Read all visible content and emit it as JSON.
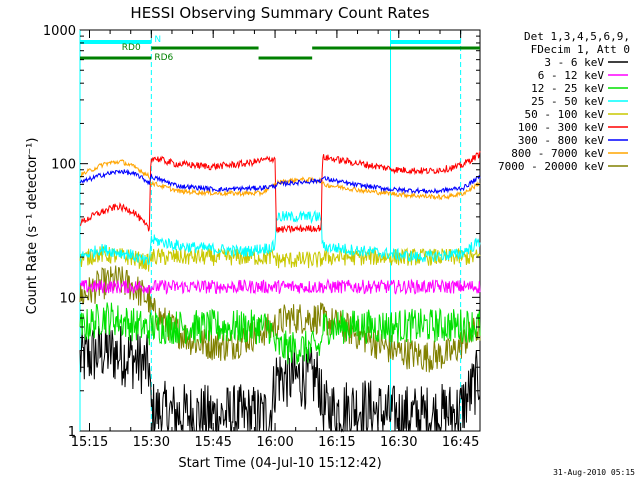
{
  "chart_data": {
    "type": "line",
    "title": "HESSI Observing Summary Count Rates",
    "xlabel": "Start Time (04-Jul-10 15:12:42)",
    "ylabel": "Count Rate (s⁻¹ detector⁻¹)",
    "yscale": "log",
    "ylim": [
      1,
      1000
    ],
    "xlim_minutes": [
      0,
      97
    ],
    "x_unit": "minutes after 15:12:42",
    "x_ticks": [
      {
        "label": "15:15",
        "minute": 2.3
      },
      {
        "label": "15:30",
        "minute": 17.3
      },
      {
        "label": "15:45",
        "minute": 32.3
      },
      {
        "label": "16:00",
        "minute": 47.3
      },
      {
        "label": "16:15",
        "minute": 62.3
      },
      {
        "label": "16:30",
        "minute": 77.3
      },
      {
        "label": "16:45",
        "minute": 92.3
      }
    ],
    "y_ticks": [
      {
        "label": "1",
        "value": 1
      },
      {
        "label": "10",
        "value": 10
      },
      {
        "label": "100",
        "value": 100
      },
      {
        "label": "1000",
        "value": 1000
      }
    ],
    "legend": {
      "placement": "top-right",
      "header": [
        "Det 1,3,4,5,6,9,",
        "FDecim 1, Att 0"
      ]
    },
    "series": [
      {
        "name": "3 - 6 keV",
        "color": "#000000"
      },
      {
        "name": "6 - 12 keV",
        "color": "#ff00ff"
      },
      {
        "name": "12 - 25 keV",
        "color": "#00e000"
      },
      {
        "name": "25 - 50 keV",
        "color": "#00ffff"
      },
      {
        "name": "50 - 100 keV",
        "color": "#c8c800"
      },
      {
        "name": "100 - 300 keV",
        "color": "#ff0000"
      },
      {
        "name": "300 - 800 keV",
        "color": "#0000ff"
      },
      {
        "name": "800 - 7000 keV",
        "color": "#ffa500"
      },
      {
        "name": "7000 - 20000 keV",
        "color": "#808000"
      }
    ],
    "profiles": [
      {
        "series": "3 - 6 keV",
        "points": [
          [
            0,
            3.4
          ],
          [
            6,
            4.0
          ],
          [
            12,
            3.6
          ],
          [
            16.8,
            3.0
          ],
          [
            17.2,
            1.4
          ],
          [
            30,
            1.3
          ],
          [
            46,
            1.3
          ],
          [
            47.6,
            2.6
          ],
          [
            50,
            2.5
          ],
          [
            58,
            2.5
          ],
          [
            58.8,
            1.4
          ],
          [
            68,
            1.5
          ],
          [
            76,
            1.3
          ],
          [
            86,
            1.3
          ],
          [
            92,
            1.4
          ],
          [
            97,
            2.6
          ]
        ]
      },
      {
        "series": "6 - 12 keV",
        "points": [
          [
            0,
            12
          ],
          [
            97,
            12
          ]
        ]
      },
      {
        "series": "12 - 25 keV",
        "points": [
          [
            0,
            5.8
          ],
          [
            6,
            7.2
          ],
          [
            12,
            6.4
          ],
          [
            16.8,
            5.8
          ],
          [
            17.2,
            6.0
          ],
          [
            46,
            6.0
          ],
          [
            47.6,
            4.2
          ],
          [
            58.5,
            4.2
          ],
          [
            58.8,
            6.0
          ],
          [
            97,
            6.2
          ]
        ]
      },
      {
        "series": "25 - 50 keV",
        "points": [
          [
            0,
            20
          ],
          [
            5,
            23
          ],
          [
            12,
            21
          ],
          [
            16.8,
            18
          ],
          [
            17.2,
            27
          ],
          [
            25,
            24
          ],
          [
            40,
            22
          ],
          [
            47.3,
            24
          ],
          [
            47.6,
            40
          ],
          [
            58.5,
            40
          ],
          [
            58.8,
            24
          ],
          [
            70,
            22
          ],
          [
            82,
            20
          ],
          [
            92,
            21
          ],
          [
            97,
            26
          ]
        ]
      },
      {
        "series": "50 - 100 keV",
        "points": [
          [
            0,
            19
          ],
          [
            4,
            21
          ],
          [
            12,
            20
          ],
          [
            16.8,
            18
          ],
          [
            17.2,
            20
          ],
          [
            47.3,
            20
          ],
          [
            47.6,
            19
          ],
          [
            58.5,
            19
          ],
          [
            58.8,
            20
          ],
          [
            97,
            20
          ]
        ]
      },
      {
        "series": "100 - 300 keV",
        "points": [
          [
            0,
            36
          ],
          [
            4,
            42
          ],
          [
            9,
            48
          ],
          [
            13,
            44
          ],
          [
            16.8,
            32
          ],
          [
            17.2,
            112
          ],
          [
            23,
            100
          ],
          [
            32,
            95
          ],
          [
            40,
            100
          ],
          [
            47.3,
            110
          ],
          [
            47.6,
            32
          ],
          [
            58.5,
            33
          ],
          [
            58.8,
            112
          ],
          [
            68,
            100
          ],
          [
            77,
            90
          ],
          [
            85,
            88
          ],
          [
            92,
            95
          ],
          [
            97,
            118
          ]
        ]
      },
      {
        "series": "300 - 800 keV",
        "points": [
          [
            0,
            72
          ],
          [
            5,
            82
          ],
          [
            10,
            88
          ],
          [
            14,
            82
          ],
          [
            16.8,
            72
          ],
          [
            17.2,
            80
          ],
          [
            24,
            68
          ],
          [
            34,
            64
          ],
          [
            44,
            66
          ],
          [
            47.3,
            68
          ],
          [
            47.6,
            70
          ],
          [
            52,
            72
          ],
          [
            58.5,
            75
          ],
          [
            58.8,
            78
          ],
          [
            66,
            70
          ],
          [
            76,
            64
          ],
          [
            86,
            62
          ],
          [
            93,
            66
          ],
          [
            97,
            80
          ]
        ]
      },
      {
        "series": "800 - 7000 keV",
        "points": [
          [
            0,
            82
          ],
          [
            6,
            100
          ],
          [
            10,
            104
          ],
          [
            14,
            92
          ],
          [
            16.8,
            80
          ],
          [
            17.2,
            72
          ],
          [
            24,
            62
          ],
          [
            34,
            60
          ],
          [
            44,
            60
          ],
          [
            47.3,
            70
          ],
          [
            47.6,
            72
          ],
          [
            53,
            76
          ],
          [
            58.5,
            75
          ],
          [
            58.8,
            70
          ],
          [
            70,
            62
          ],
          [
            80,
            58
          ],
          [
            88,
            56
          ],
          [
            93,
            60
          ],
          [
            97,
            72
          ]
        ]
      },
      {
        "series": "7000 - 20000 keV",
        "points": [
          [
            0,
            10
          ],
          [
            5,
            12.5
          ],
          [
            9,
            13.5
          ],
          [
            13,
            12
          ],
          [
            16.8,
            9.5
          ],
          [
            17.2,
            8
          ],
          [
            22,
            6
          ],
          [
            28,
            4.6
          ],
          [
            36,
            4.3
          ],
          [
            42,
            5.2
          ],
          [
            47,
            6
          ],
          [
            50,
            7
          ],
          [
            58,
            7
          ],
          [
            64,
            6
          ],
          [
            70,
            4.8
          ],
          [
            76,
            4
          ],
          [
            84,
            3.6
          ],
          [
            90,
            3.8
          ],
          [
            97,
            6
          ]
        ]
      }
    ],
    "attenuator_bars": [
      {
        "label": "N",
        "color": "#00ffff",
        "level": "top",
        "segments": [
          [
            0,
            17.3
          ],
          [
            75.3,
            92.3
          ]
        ]
      },
      {
        "label": "RD0",
        "color": "#008000",
        "level": "middle",
        "segments": [
          [
            17.3,
            43.3
          ],
          [
            56.3,
            97
          ]
        ]
      },
      {
        "label": "RD6",
        "color": "#008000",
        "level": "bottom",
        "segments": [
          [
            0,
            17.3
          ],
          [
            43.3,
            56.3
          ]
        ]
      }
    ],
    "vlines_solid_minutes": [
      0,
      75.3
    ],
    "vlines_dashed_minutes": [
      17.3,
      92.3
    ]
  },
  "footer": {
    "date_stamp": "31-Aug-2010 05:15"
  }
}
